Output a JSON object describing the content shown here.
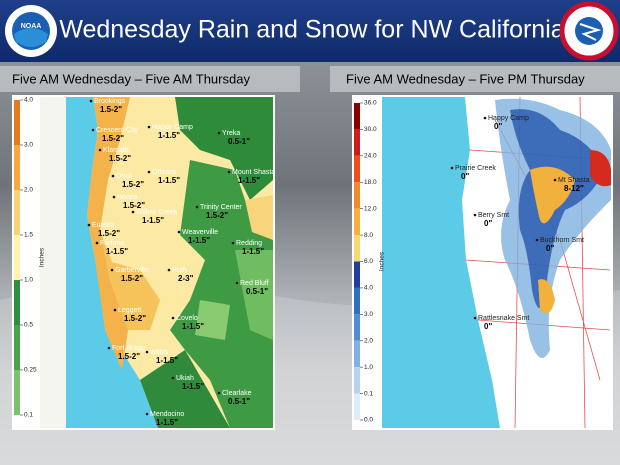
{
  "header": {
    "title": "Wednesday Rain and Snow for NW California",
    "logo_left": "NOAA",
    "logo_right": "NATIONAL WEATHER SERVICE"
  },
  "panels": [
    {
      "title": "Five AM Wednesday – Five AM Thursday",
      "scale_label": "Inches",
      "scale_ticks": [
        "4.0",
        "3.0",
        "2.0",
        "1.5",
        "1.0",
        "0.5",
        "0.25",
        "0.1"
      ],
      "places": [
        {
          "name": "Brookings",
          "amount": "1.5-2\""
        },
        {
          "name": "Crescent City",
          "amount": "1.5-2\""
        },
        {
          "name": "Happy Camp",
          "amount": "1-1.5\""
        },
        {
          "name": "Yreka",
          "amount": "0.5-1\""
        },
        {
          "name": "Klamath",
          "amount": "1.5-2\""
        },
        {
          "name": "Orleans",
          "amount": "1-1.5\""
        },
        {
          "name": "Mount Shasta",
          "amount": "1-1.5\""
        },
        {
          "name": "Orick",
          "amount": "1.5-2\""
        },
        {
          "name": "Hoopa",
          "amount": "1.5-2\""
        },
        {
          "name": "Willow Creek",
          "amount": "1-1.5\""
        },
        {
          "name": "Trinity Center",
          "amount": "1.5-2\""
        },
        {
          "name": "Eureka",
          "amount": "1.5-2\""
        },
        {
          "name": "Weaverville",
          "amount": "1-1.5\""
        },
        {
          "name": "Redding",
          "amount": "1-1.5\""
        },
        {
          "name": "Fortuna",
          "amount": "1-1.5\""
        },
        {
          "name": "Ruth",
          "amount": "2-3\""
        },
        {
          "name": "Red Bluff",
          "amount": "0.5-1\""
        },
        {
          "name": "Garberville",
          "amount": "1.5-2\""
        },
        {
          "name": "Leggett",
          "amount": "1.5-2\""
        },
        {
          "name": "Covelo",
          "amount": "1-1.5\""
        },
        {
          "name": "Fort Bragg",
          "amount": "1.5-2\""
        },
        {
          "name": "Willits",
          "amount": "1-1.5\""
        },
        {
          "name": "Ukiah",
          "amount": "1-1.5\""
        },
        {
          "name": "Clearlake",
          "amount": "0.5-1\""
        },
        {
          "name": "Mendocino",
          "amount": "1-1.5\""
        }
      ]
    },
    {
      "title": "Five AM Wednesday – Five PM Thursday",
      "scale_label": "Inches",
      "scale_ticks": [
        "36.0",
        "30.0",
        "24.0",
        "18.0",
        "12.0",
        "8.0",
        "6.0",
        "4.0",
        "3.0",
        "2.0",
        "1.0",
        "0.1",
        "0.0"
      ],
      "places": [
        {
          "name": "Happy Camp",
          "amount": "0\""
        },
        {
          "name": "Prairie Creek",
          "amount": "0\""
        },
        {
          "name": "Mt Shasta",
          "amount": "8-12\""
        },
        {
          "name": "Berry Smt",
          "amount": "0\""
        },
        {
          "name": "Buckhorn Smt",
          "amount": "0\""
        },
        {
          "name": "Rattlesnake Smt",
          "amount": "0\""
        }
      ]
    }
  ]
}
